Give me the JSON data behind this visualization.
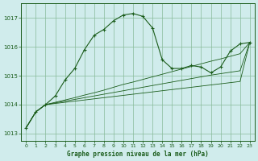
{
  "title": "Graphe pression niveau de la mer (hPa)",
  "background_color": "#d0ecec",
  "plot_bg_color": "#d0ecec",
  "grid_color": "#88bb99",
  "line_color": "#1a5c1a",
  "xlim": [
    -0.5,
    23.5
  ],
  "ylim": [
    1012.75,
    1017.5
  ],
  "yticks": [
    1013,
    1014,
    1015,
    1016,
    1017
  ],
  "xticks": [
    0,
    1,
    2,
    3,
    4,
    5,
    6,
    7,
    8,
    9,
    10,
    11,
    12,
    13,
    14,
    15,
    16,
    17,
    18,
    19,
    20,
    21,
    22,
    23
  ],
  "series0": [
    1013.2,
    1013.75,
    1014.0,
    1014.3,
    1014.85,
    1015.25,
    1015.9,
    1016.4,
    1016.6,
    1016.9,
    1017.1,
    1017.15,
    1017.05,
    1016.65,
    1015.55,
    1015.25,
    1015.25,
    1015.35,
    1015.3,
    1015.1,
    1015.3,
    1015.85,
    1016.1,
    1016.15
  ],
  "series1": [
    1013.2,
    1013.75,
    1014.0,
    1014.08,
    1014.16,
    1014.24,
    1014.33,
    1014.41,
    1014.5,
    1014.6,
    1014.7,
    1014.78,
    1014.87,
    1014.96,
    1015.05,
    1015.14,
    1015.23,
    1015.32,
    1015.41,
    1015.5,
    1015.58,
    1015.67,
    1015.76,
    1016.15
  ],
  "series2": [
    1013.2,
    1013.75,
    1014.0,
    1014.06,
    1014.12,
    1014.18,
    1014.24,
    1014.3,
    1014.36,
    1014.42,
    1014.48,
    1014.54,
    1014.6,
    1014.66,
    1014.72,
    1014.78,
    1014.84,
    1014.9,
    1014.96,
    1015.02,
    1015.07,
    1015.12,
    1015.17,
    1016.15
  ],
  "series3": [
    1013.2,
    1013.75,
    1014.0,
    1014.04,
    1014.08,
    1014.12,
    1014.16,
    1014.2,
    1014.24,
    1014.28,
    1014.32,
    1014.36,
    1014.4,
    1014.44,
    1014.48,
    1014.52,
    1014.56,
    1014.6,
    1014.64,
    1014.68,
    1014.72,
    1014.76,
    1014.8,
    1016.15
  ]
}
